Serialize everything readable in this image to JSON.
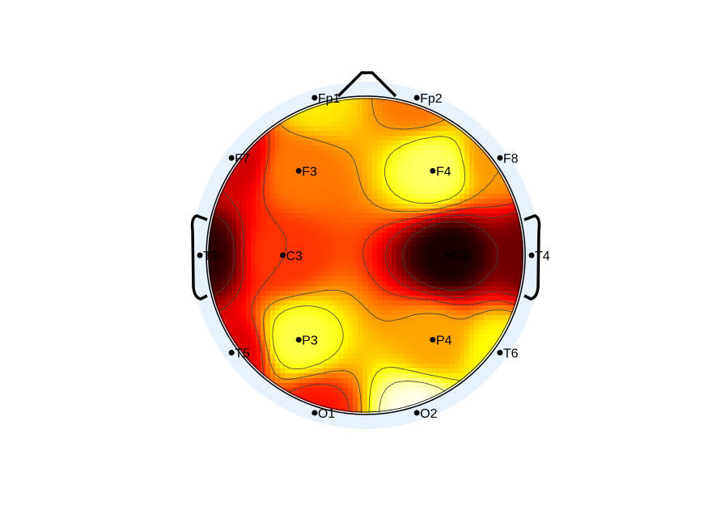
{
  "chart_data": {
    "type": "heatmap",
    "subtype": "eeg-topographic-map",
    "colormap": "hot",
    "contour_lines": true,
    "electrodes": [
      {
        "label": "Fp1",
        "x": -0.308,
        "y": 0.951,
        "value": 0.72
      },
      {
        "label": "Fp2",
        "x": 0.308,
        "y": 0.951,
        "value": 0.55
      },
      {
        "label": "F7",
        "x": -0.809,
        "y": 0.588,
        "value": 0.3
      },
      {
        "label": "F3",
        "x": -0.404,
        "y": 0.51,
        "value": 0.55
      },
      {
        "label": "F4",
        "x": 0.404,
        "y": 0.51,
        "value": 0.85
      },
      {
        "label": "F8",
        "x": 0.809,
        "y": 0.588,
        "value": 0.6
      },
      {
        "label": "T3",
        "x": -1.0,
        "y": 0.0,
        "value": 0.05
      },
      {
        "label": "C3",
        "x": -0.5,
        "y": 0.0,
        "value": 0.45
      },
      {
        "label": "C4",
        "x": 0.5,
        "y": 0.0,
        "value": 0.02
      },
      {
        "label": "T4",
        "x": 1.0,
        "y": 0.0,
        "value": 0.15
      },
      {
        "label": "T5",
        "x": -0.809,
        "y": -0.588,
        "value": 0.32
      },
      {
        "label": "P3",
        "x": -0.404,
        "y": -0.51,
        "value": 0.82
      },
      {
        "label": "P4",
        "x": 0.404,
        "y": -0.51,
        "value": 0.62
      },
      {
        "label": "T6",
        "x": 0.809,
        "y": -0.588,
        "value": 0.75
      },
      {
        "label": "O1",
        "x": -0.308,
        "y": -0.951,
        "value": 0.4
      },
      {
        "label": "O2",
        "x": 0.308,
        "y": -0.951,
        "value": 0.98
      }
    ],
    "colors": {
      "background_ring": "#e8f2fc",
      "head_outline": "#000000",
      "contour": "#404040"
    }
  }
}
